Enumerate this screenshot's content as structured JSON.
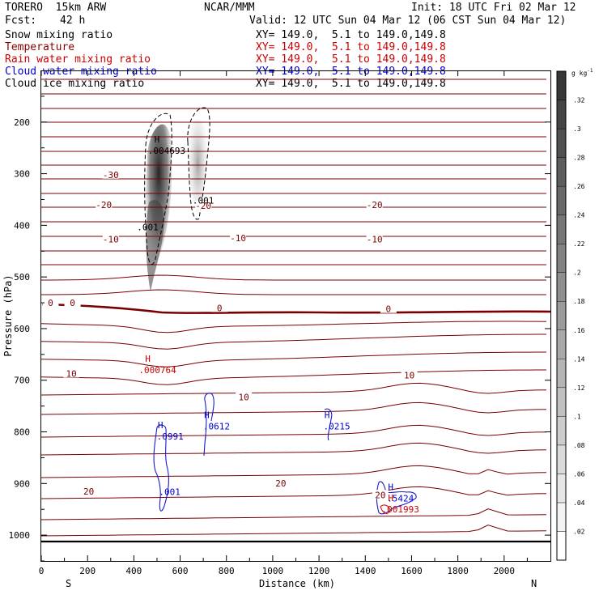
{
  "header": {
    "model": "TORERO  15km ARW",
    "center": "NCAR/MMM",
    "init": "Init: 18 UTC Fri 02 Mar 12",
    "fcst_label": "Fcst:",
    "fcst_value": "42 h",
    "valid": "Valid: 12 UTC Sun 04 Mar 12 (06 CST Sun 04 Mar 12)"
  },
  "fields": [
    {
      "name": "Snow mixing ratio",
      "xy": "XY= 149.0,  5.1 to 149.0,149.8",
      "color": "#000000"
    },
    {
      "name": "Temperature",
      "xy": "XY= 149.0,  5.1 to 149.0,149.8",
      "color": "#8b0000"
    },
    {
      "name": "Rain water mixing ratio",
      "xy": "XY= 149.0,  5.1 to 149.0,149.8",
      "color": "#cc0000"
    },
    {
      "name": "Cloud water mixing ratio",
      "xy": "XY= 149.0,  5.1 to 149.0,149.8",
      "color": "#0000cc"
    },
    {
      "name": "Cloud ice mixing ratio",
      "xy": "XY= 149.0,  5.1 to 149.0,149.8",
      "color": "#000000"
    }
  ],
  "chart_data": {
    "type": "cross-section",
    "xlabel": "Distance (km)",
    "ylabel": "Pressure (hPa)",
    "xlim": [
      0,
      2200
    ],
    "ylim": [
      1050,
      100
    ],
    "x_ticks": [
      0,
      200,
      400,
      600,
      800,
      1000,
      1200,
      1400,
      1600,
      1800,
      2000
    ],
    "y_ticks": [
      200,
      300,
      400,
      500,
      600,
      700,
      800,
      900,
      1000
    ],
    "y_scale": "linear",
    "end_labels": {
      "left": "S",
      "right": "N"
    },
    "colorbar": {
      "unit": "g kg",
      "unit_exp": "-1",
      "ticks": [
        ".02",
        ".04",
        ".06",
        ".08",
        ".1",
        ".12",
        ".14",
        ".16",
        ".18",
        ".2",
        ".22",
        ".24",
        ".26",
        ".28",
        ".3",
        ".32"
      ],
      "range": [
        0,
        0.34
      ]
    },
    "temperature_labels": [
      {
        "text": "-30",
        "x": 300,
        "p": 305
      },
      {
        "text": "-20",
        "x": 270,
        "p": 363
      },
      {
        "text": "-20",
        "x": 700,
        "p": 365
      },
      {
        "text": "-20",
        "x": 1440,
        "p": 363
      },
      {
        "text": "-10",
        "x": 300,
        "p": 430
      },
      {
        "text": "-10",
        "x": 850,
        "p": 428
      },
      {
        "text": "-10",
        "x": 1440,
        "p": 430
      },
      {
        "text": "0",
        "x": 40,
        "p": 553
      },
      {
        "text": "0",
        "x": 135,
        "p": 553
      },
      {
        "text": "0",
        "x": 770,
        "p": 563
      },
      {
        "text": "0",
        "x": 1500,
        "p": 565
      },
      {
        "text": "10",
        "x": 130,
        "p": 690
      },
      {
        "text": "10",
        "x": 875,
        "p": 736
      },
      {
        "text": "10",
        "x": 1590,
        "p": 693
      },
      {
        "text": "20",
        "x": 205,
        "p": 918
      },
      {
        "text": "20",
        "x": 1035,
        "p": 903
      },
      {
        "text": "20",
        "x": 1465,
        "p": 925
      }
    ],
    "maxima": [
      {
        "field": "Snow mixing ratio",
        "symbol": "H",
        "value": ".004693",
        "x": 500,
        "p": 258
      },
      {
        "field": "Rain water mixing ratio",
        "symbol": "H",
        "value": ".000764",
        "x": 460,
        "p": 683
      },
      {
        "field": "Cloud water mixing ratio",
        "symbol": "H",
        "value": ".0991",
        "x": 515,
        "p": 812
      },
      {
        "field": "Cloud water mixing ratio",
        "symbol": "H",
        "value": ".0612",
        "x": 715,
        "p": 792
      },
      {
        "field": "Cloud water mixing ratio",
        "symbol": "H",
        "value": ".0215",
        "x": 1235,
        "p": 792
      },
      {
        "field": "Cloud water mixing ratio",
        "symbol": "H",
        "value": ".5424",
        "x": 1510,
        "p": 932
      },
      {
        "field": "Rain water mixing ratio",
        "symbol": "H",
        "value": ".001993",
        "x": 1510,
        "p": 953
      }
    ],
    "contour_labels": [
      {
        "field": "Cloud ice mixing ratio",
        "value": ".001",
        "x": 700,
        "p": 358
      },
      {
        "field": "Cloud ice mixing ratio",
        "value": ".001",
        "x": 460,
        "p": 410
      },
      {
        "field": "Cloud water mixing ratio",
        "value": ".001",
        "x": 555,
        "p": 922
      }
    ]
  }
}
